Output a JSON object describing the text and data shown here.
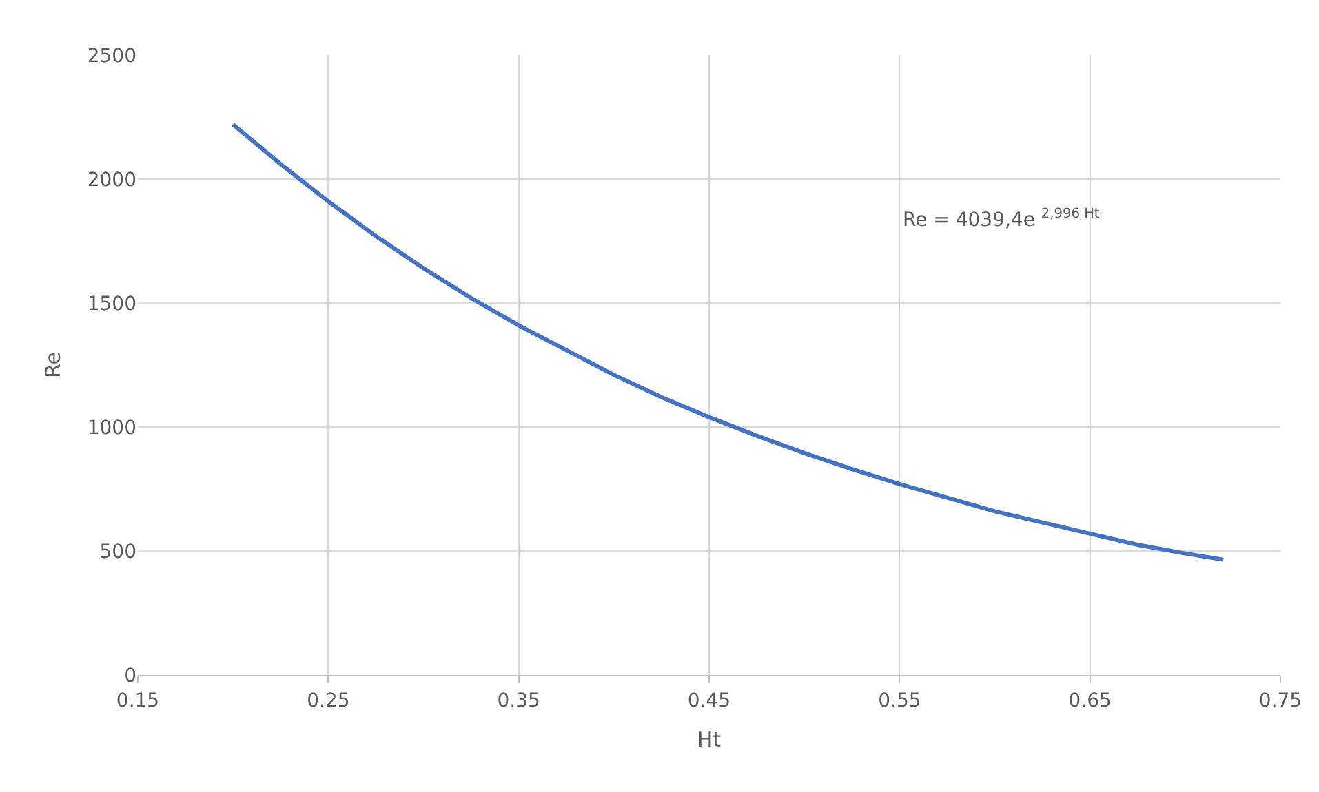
{
  "chart_data": {
    "type": "line",
    "xlabel": "Ht",
    "ylabel": "Re",
    "x": [
      0.2,
      0.225,
      0.25,
      0.275,
      0.3,
      0.325,
      0.35,
      0.375,
      0.4,
      0.425,
      0.45,
      0.475,
      0.5,
      0.525,
      0.55,
      0.575,
      0.6,
      0.625,
      0.65,
      0.675,
      0.7,
      0.72
    ],
    "series": [
      {
        "color": "#4472c4",
        "values": [
          2220,
          2060,
          1910,
          1770,
          1640,
          1520,
          1410,
          1310,
          1210,
          1120,
          1040,
          965,
          895,
          830,
          770,
          715,
          660,
          615,
          570,
          525,
          490,
          465
        ]
      }
    ],
    "annotations": [
      "Re = 4039,4e $^{2,996 Ht}$"
    ],
    "xlim": [
      0.15,
      0.75
    ],
    "xticks": [
      0.15,
      0.25,
      0.35,
      0.45,
      0.55,
      0.65,
      0.75
    ],
    "ylim": [
      0,
      2500
    ],
    "yticks": [
      0,
      500,
      1000,
      1500,
      2000,
      2500
    ],
    "grid": true,
    "marker": "none",
    "line_style": "solid"
  }
}
